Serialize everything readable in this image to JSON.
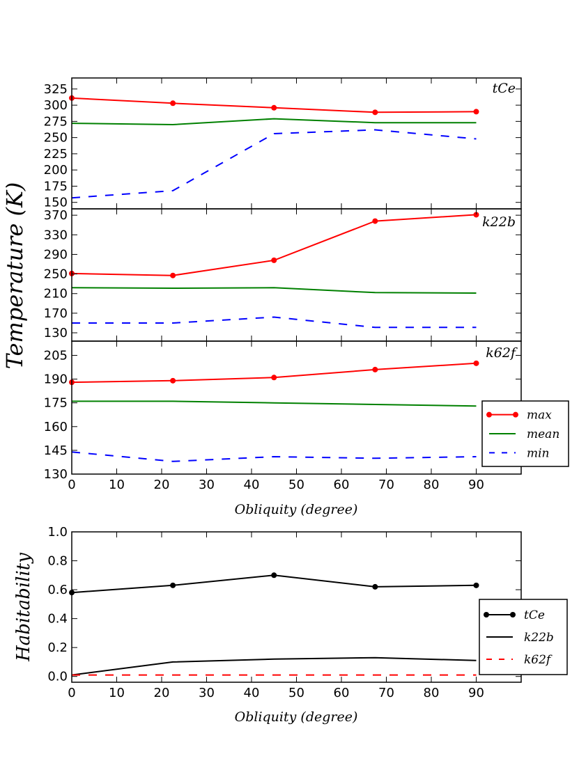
{
  "chart_data": [
    {
      "type": "line",
      "panel": "tCe",
      "title": "tCe",
      "ylabel": "Temperature (K)",
      "x": [
        0,
        22.5,
        45,
        67.5,
        90
      ],
      "xlim": [
        0,
        100
      ],
      "ylim": [
        140,
        342
      ],
      "yticks": [
        150,
        175,
        200,
        225,
        250,
        275,
        300,
        325
      ],
      "series": [
        {
          "name": "max",
          "style": "red-dot",
          "color": "#ff0000",
          "values": [
            311,
            303,
            296,
            289,
            290
          ]
        },
        {
          "name": "mean",
          "style": "solid",
          "color": "#008000",
          "values": [
            272,
            270,
            279,
            273,
            273
          ]
        },
        {
          "name": "min",
          "style": "dashed",
          "color": "#0000ff",
          "values": [
            157,
            168,
            256,
            262,
            248
          ]
        }
      ]
    },
    {
      "type": "line",
      "panel": "k22b",
      "title": "k22b",
      "x": [
        0,
        22.5,
        45,
        67.5,
        90
      ],
      "xlim": [
        0,
        100
      ],
      "ylim": [
        113,
        383
      ],
      "yticks": [
        130,
        170,
        210,
        250,
        290,
        330,
        370
      ],
      "series": [
        {
          "name": "max",
          "style": "red-dot",
          "color": "#ff0000",
          "values": [
            251,
            247,
            278,
            358,
            371
          ]
        },
        {
          "name": "mean",
          "style": "solid",
          "color": "#008000",
          "values": [
            222,
            221,
            222,
            212,
            211
          ]
        },
        {
          "name": "min",
          "style": "dashed",
          "color": "#0000ff",
          "values": [
            150,
            150,
            162,
            141,
            141
          ]
        }
      ]
    },
    {
      "type": "line",
      "panel": "k62f",
      "title": "k62f",
      "x": [
        0,
        22.5,
        45,
        67.5,
        90
      ],
      "xlim": [
        0,
        100
      ],
      "ylim": [
        130,
        214
      ],
      "yticks": [
        130,
        145,
        160,
        175,
        190,
        205
      ],
      "xticks": [
        0,
        10,
        20,
        30,
        40,
        50,
        60,
        70,
        80,
        90
      ],
      "xlabel": "Obliquity (degree)",
      "legend": {
        "placement": "right",
        "labels": [
          "max",
          "mean",
          "min"
        ]
      },
      "series": [
        {
          "name": "max",
          "style": "red-dot",
          "color": "#ff0000",
          "values": [
            188,
            189,
            191,
            196,
            200
          ]
        },
        {
          "name": "mean",
          "style": "solid",
          "color": "#008000",
          "values": [
            176,
            176,
            175,
            174,
            173
          ]
        },
        {
          "name": "min",
          "style": "dashed",
          "color": "#0000ff",
          "values": [
            144,
            138,
            141,
            140,
            141
          ]
        }
      ]
    },
    {
      "type": "line",
      "panel": "habitability",
      "ylabel": "Habitability",
      "xlabel": "Obliquity (degree)",
      "x": [
        0,
        22.5,
        45,
        67.5,
        90
      ],
      "xlim": [
        0,
        100
      ],
      "ylim": [
        -0.04,
        1.0
      ],
      "yticks": [
        0.0,
        0.2,
        0.4,
        0.6,
        0.8,
        1.0
      ],
      "yticklabels": [
        "0.0",
        "0.2",
        "0.4",
        "0.6",
        "0.8",
        "1.0"
      ],
      "xticks": [
        0,
        10,
        20,
        30,
        40,
        50,
        60,
        70,
        80,
        90
      ],
      "legend": {
        "placement": "right",
        "labels": [
          "tCe",
          "k22b",
          "k62f"
        ]
      },
      "series": [
        {
          "name": "tCe",
          "style": "black-dot",
          "color": "#000000",
          "values": [
            0.58,
            0.63,
            0.7,
            0.62,
            0.63
          ]
        },
        {
          "name": "k22b",
          "style": "solid",
          "color": "#000000",
          "values": [
            0.01,
            0.1,
            0.12,
            0.13,
            0.11
          ]
        },
        {
          "name": "k62f",
          "style": "dashed",
          "color": "#ff0000",
          "values": [
            0.01,
            0.01,
            0.01,
            0.01,
            0.01
          ]
        }
      ]
    }
  ]
}
